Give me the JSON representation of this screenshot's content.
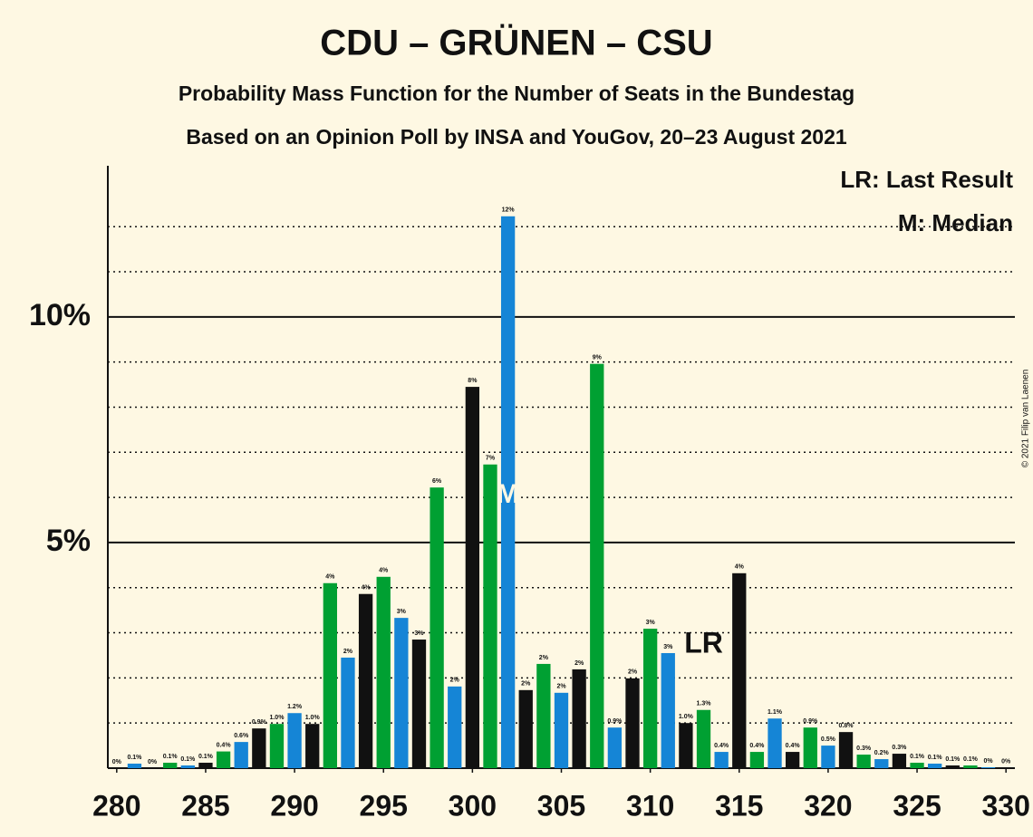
{
  "chart_data": {
    "type": "bar",
    "title": "CDU – GRÜNEN – CSU",
    "subtitle": "Probability Mass Function for the Number of Seats in the Bundestag",
    "subtitle2": "Based on an Opinion Poll by INSA and YouGov, 20–23 August 2021",
    "copyright": "© 2021 Filip van Laenen",
    "legend_notes": [
      "LR: Last Result",
      "M: Median"
    ],
    "x": [
      280,
      281,
      282,
      283,
      284,
      285,
      286,
      287,
      288,
      289,
      290,
      291,
      292,
      293,
      294,
      295,
      296,
      297,
      298,
      299,
      300,
      301,
      302,
      303,
      304,
      305,
      306,
      307,
      308,
      309,
      310,
      311,
      312,
      313,
      314,
      315,
      316,
      317,
      318,
      319,
      320,
      321,
      322,
      323,
      324,
      325,
      326,
      327,
      328,
      329,
      330
    ],
    "values": [
      0,
      0.1,
      0,
      0.12,
      0.06,
      0.12,
      0.37,
      0.58,
      0.88,
      0.98,
      1.22,
      0.98,
      4.1,
      2.45,
      3.86,
      4.24,
      3.33,
      2.85,
      6.22,
      1.81,
      8.45,
      6.73,
      12.23,
      1.73,
      2.31,
      1.67,
      2.19,
      8.96,
      0.9,
      1.99,
      3.09,
      2.55,
      1.0,
      1.29,
      0.36,
      4.32,
      0.36,
      1.1,
      0.36,
      0.9,
      0.5,
      0.8,
      0.3,
      0.2,
      0.32,
      0.12,
      0.1,
      0.06,
      0.06,
      0.02,
      0.01
    ],
    "value_labels": [
      "0%",
      "0.1%",
      "0%",
      "0.1%",
      "0.1%",
      "0.1%",
      "0.4%",
      "0.6%",
      "0.9%",
      "1.0%",
      "1.2%",
      "1.0%",
      "4%",
      "2%",
      "4%",
      "4%",
      "3%",
      "3%",
      "6%",
      "2%",
      "8%",
      "7%",
      "12%",
      "2%",
      "2%",
      "2%",
      "2%",
      "9%",
      "0.9%",
      "2%",
      "3%",
      "3%",
      "1.0%",
      "1.3%",
      "0.4%",
      "4%",
      "0.4%",
      "1.1%",
      "0.4%",
      "0.9%",
      "0.5%",
      "0.8%",
      "0.3%",
      "0.2%",
      "0.3%",
      "0.1%",
      "0.1%",
      "0.1%",
      "0.1%",
      "0%",
      "0%"
    ],
    "color_cycle": [
      "#00a032",
      "#1585d6",
      "#111111"
    ],
    "xlim": [
      279.5,
      330.5
    ],
    "xticks": [
      280,
      285,
      290,
      295,
      300,
      305,
      310,
      315,
      320,
      325,
      330
    ],
    "ylim": [
      0,
      13.35
    ],
    "yticks": [
      {
        "value": 5,
        "label": "5%"
      },
      {
        "value": 10,
        "label": "10%"
      }
    ],
    "minor_yticks": [
      1,
      2,
      3,
      4,
      6,
      7,
      8,
      9,
      11,
      12
    ],
    "grid": true,
    "last_result": {
      "x": 313,
      "label": "LR"
    },
    "median": {
      "x": 302,
      "label": "M"
    }
  }
}
